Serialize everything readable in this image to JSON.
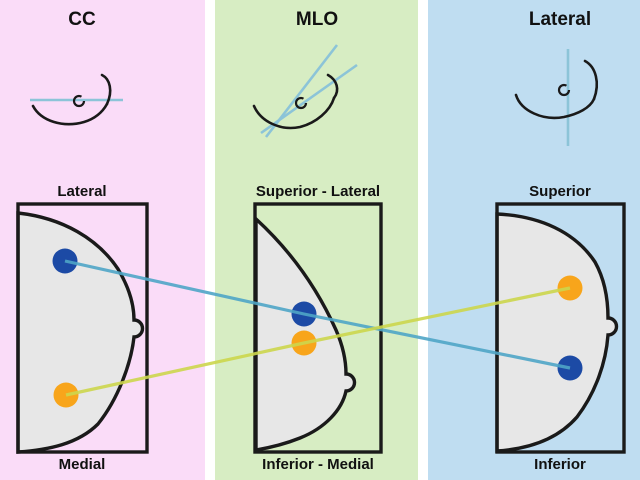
{
  "figure": {
    "panels": [
      {
        "id": "cc",
        "title": "CC",
        "label_top": "Lateral",
        "label_bottom": "Medial"
      },
      {
        "id": "mlo",
        "title": "MLO",
        "label_top": "Superior - Lateral",
        "label_bottom": "Inferior - Medial"
      },
      {
        "id": "lateral",
        "title": "Lateral",
        "label_top": "Superior",
        "label_bottom": "Inferior"
      }
    ],
    "markers": {
      "blue": {
        "cc": [
          65,
          261
        ],
        "mlo": [
          304,
          314
        ],
        "lateral": [
          570,
          368
        ]
      },
      "orange": {
        "cc": [
          66,
          395
        ],
        "mlo": [
          304,
          343
        ],
        "lateral": [
          570,
          288
        ]
      }
    },
    "marker_radius": 12.5,
    "colors": {
      "column_cc_bg": "#fadcf8",
      "column_mlo_bg": "#d7edc3",
      "column_lateral_bg": "#bfddf1",
      "panel_fill": "#e7e7e7",
      "outline": "#1a1a1a",
      "dot_blue": "#1c4aa5",
      "dot_orange": "#f8a51b",
      "line_blue": "#4fa5c6",
      "line_yellow": "#ccd64d",
      "icon_axis": "#8cc4d8"
    }
  }
}
